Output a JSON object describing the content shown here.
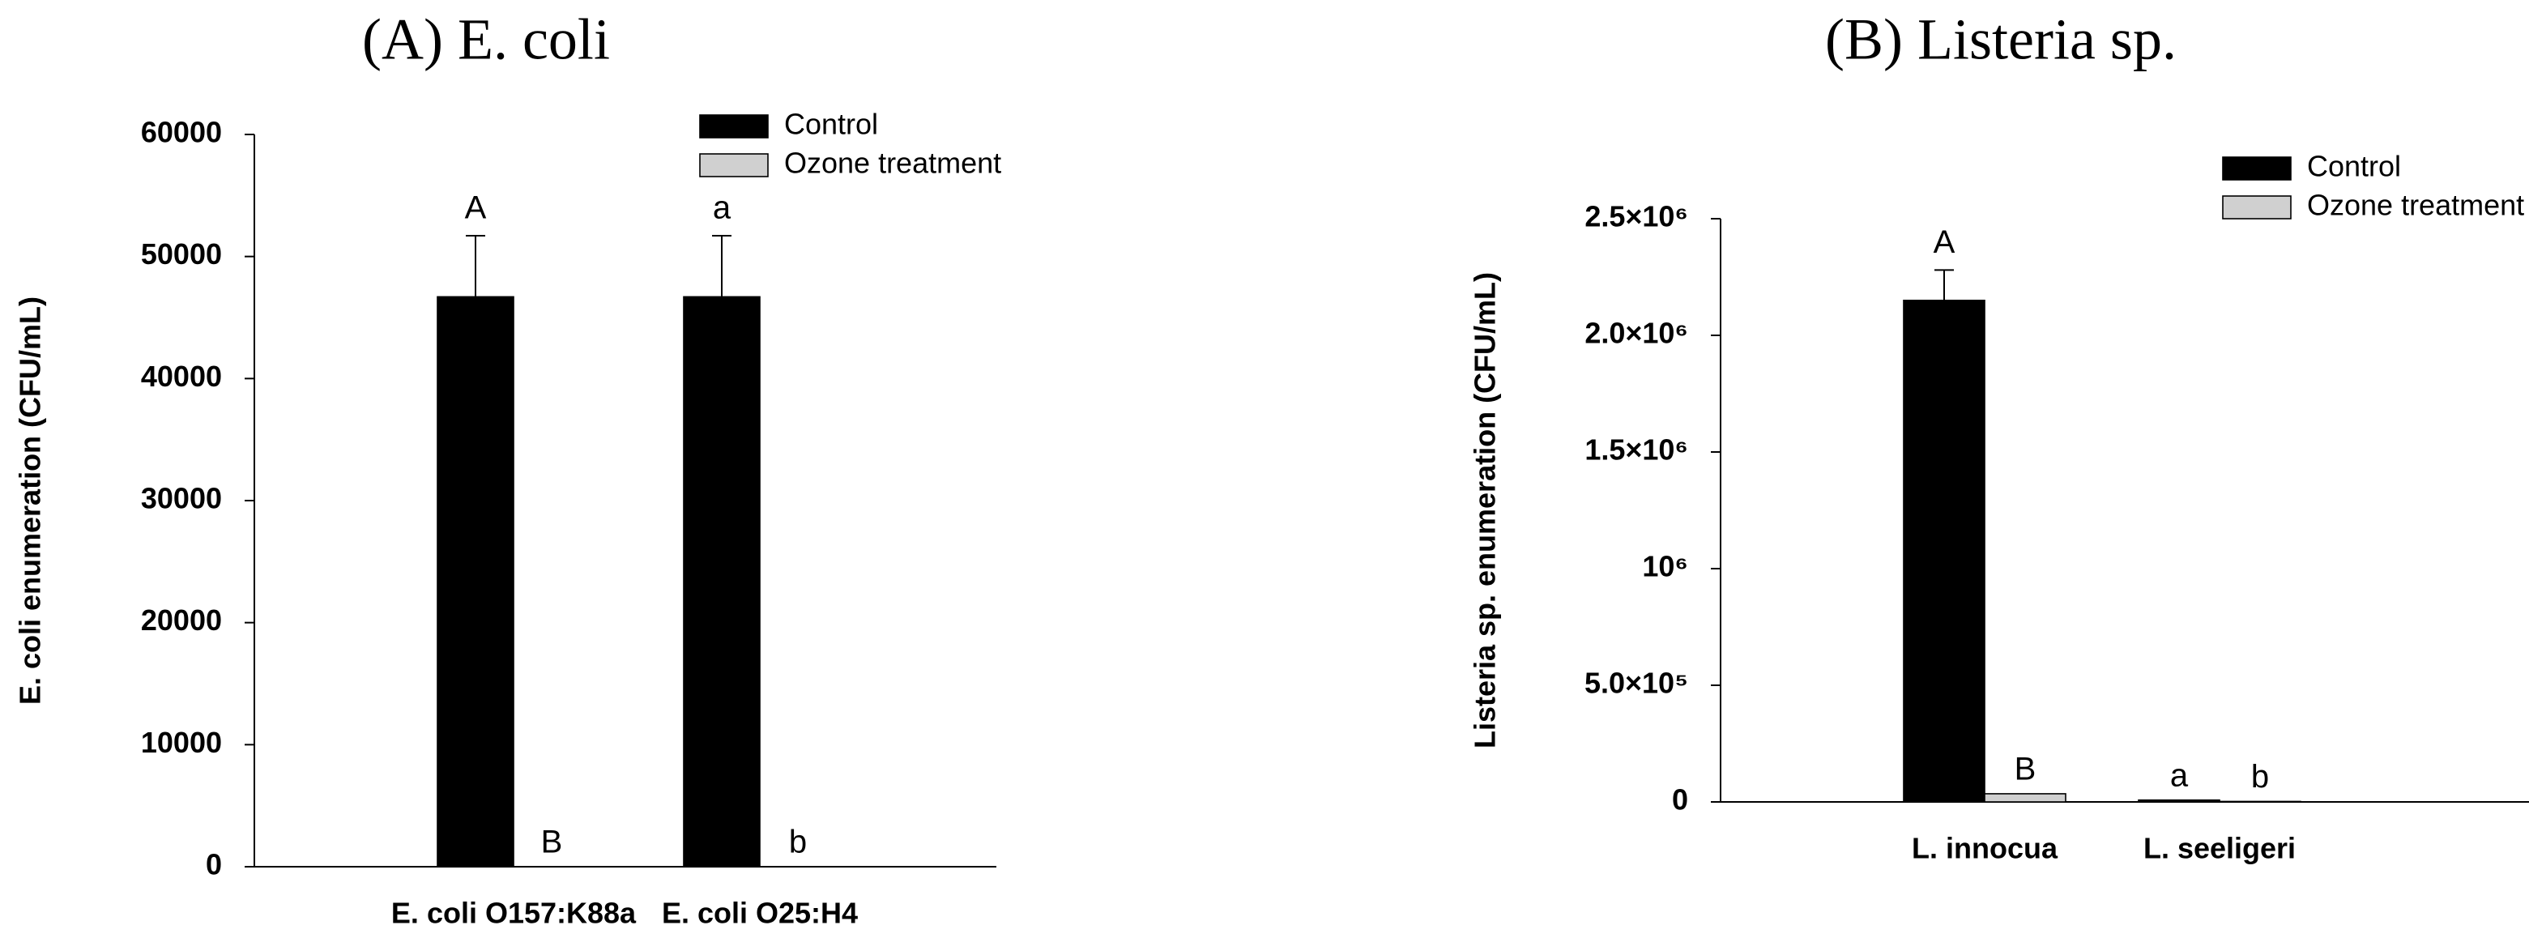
{
  "chart_data": [
    {
      "type": "bar",
      "title": "(A) E. coli",
      "y_label": "E. coli enumeration (CFU/mL)",
      "categories": [
        "E. coli O157:K88a",
        "E. coli O25:H4"
      ],
      "series": [
        {
          "name": "Control",
          "color": "#000000",
          "values": [
            46700,
            46700
          ],
          "errors": [
            5000,
            5000
          ],
          "annotations": [
            "A",
            "a"
          ]
        },
        {
          "name": "Ozone treatment",
          "color": "#d0d0d0",
          "values": [
            0,
            0
          ],
          "annotations": [
            "B",
            "b"
          ]
        }
      ],
      "ylim": [
        0,
        60000
      ],
      "yticks": [
        0,
        10000,
        20000,
        30000,
        40000,
        50000,
        60000
      ],
      "legend": "top-right"
    },
    {
      "type": "bar",
      "title": "(B) Listeria sp.",
      "y_label": "Listeria sp. enumeration (CFU/mL)",
      "categories": [
        "L. innocua",
        "L. seeligeri"
      ],
      "series": [
        {
          "name": "Control",
          "color": "#000000",
          "values": [
            2150000,
            8000
          ],
          "errors": [
            130000,
            0
          ],
          "annotations": [
            "A",
            "a"
          ]
        },
        {
          "name": "Ozone treatment",
          "color": "#d0d0d0",
          "values": [
            35000,
            2000
          ],
          "annotations": [
            "B",
            "b"
          ]
        }
      ],
      "ylim": [
        0,
        2500000
      ],
      "yticks": [
        0,
        {
          "value": 500000,
          "label": "5.0×10⁵"
        },
        {
          "value": 1000000,
          "label": "10⁶"
        },
        {
          "value": 1500000,
          "label": "1.5×10⁶"
        },
        {
          "value": 2000000,
          "label": "2.0×10⁶"
        },
        {
          "value": 2500000,
          "label": "2.5×10⁶"
        }
      ],
      "legend": "top-right"
    }
  ]
}
